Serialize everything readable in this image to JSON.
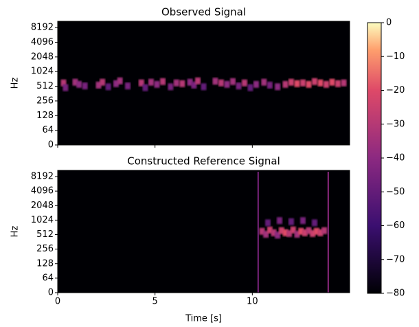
{
  "chart_data": [
    {
      "type": "spectrogram",
      "title": "Observed Signal",
      "ylabel": "Hz",
      "xlim": [
        0,
        15
      ],
      "xticks": [
        0,
        5,
        10
      ],
      "ylim": [
        0,
        11025
      ],
      "yticks": [
        0,
        64,
        128,
        256,
        512,
        1024,
        2048,
        4096,
        8192
      ],
      "cells": {
        "x": [
          0.3,
          0.4,
          0.9,
          1.1,
          1.4,
          2.1,
          2.3,
          2.6,
          3.0,
          3.2,
          3.6,
          4.3,
          4.5,
          4.8,
          5.1,
          5.4,
          5.8,
          6.1,
          6.4,
          6.8,
          7.0,
          7.2,
          7.5,
          8.1,
          8.4,
          8.7,
          9.0,
          9.3,
          9.6,
          9.9,
          10.2,
          10.6,
          10.9,
          11.3,
          11.7,
          12.0,
          12.3,
          12.6,
          12.9,
          13.2,
          13.5,
          13.8,
          14.1,
          14.4,
          14.7
        ],
        "y": [
          600,
          480,
          620,
          560,
          520,
          540,
          620,
          500,
          580,
          660,
          520,
          600,
          480,
          620,
          560,
          640,
          500,
          600,
          580,
          620,
          540,
          660,
          500,
          650,
          600,
          560,
          640,
          520,
          600,
          480,
          560,
          620,
          540,
          500,
          560,
          620,
          580,
          600,
          560,
          640,
          600,
          560,
          620,
          580,
          600
        ],
        "values": [
          -30,
          -45,
          -35,
          -40,
          -45,
          -35,
          -30,
          -50,
          -40,
          -35,
          -45,
          -30,
          -50,
          -35,
          -40,
          -30,
          -45,
          -35,
          -30,
          -40,
          -45,
          -30,
          -50,
          -35,
          -30,
          -40,
          -35,
          -45,
          -30,
          -50,
          -40,
          -35,
          -45,
          -40,
          -30,
          -25,
          -20,
          -25,
          -20,
          -25,
          -20,
          -25,
          -20,
          -25,
          -30
        ]
      }
    },
    {
      "type": "spectrogram",
      "title": "Constructed Reference Signal",
      "ylabel": "Hz",
      "xlabel": "Time [s]",
      "xlim": [
        0,
        15
      ],
      "xticks": [
        0,
        5,
        10
      ],
      "ylim": [
        0,
        11025
      ],
      "yticks": [
        0,
        64,
        128,
        256,
        512,
        1024,
        2048,
        4096,
        8192
      ],
      "cells": {
        "x": [
          10.5,
          10.7,
          10.9,
          11.1,
          11.3,
          11.5,
          11.7,
          11.9,
          12.1,
          12.3,
          12.5,
          12.7,
          12.9,
          13.1,
          13.3,
          13.5,
          13.7,
          10.8,
          11.4,
          12.0,
          12.6,
          13.2
        ],
        "y": [
          600,
          520,
          640,
          560,
          500,
          620,
          560,
          540,
          640,
          520,
          600,
          560,
          620,
          540,
          600,
          560,
          620,
          900,
          1000,
          950,
          1000,
          900
        ],
        "values": [
          -30,
          -35,
          -25,
          -30,
          -40,
          -25,
          -20,
          -30,
          -25,
          -35,
          -20,
          -25,
          -30,
          -25,
          -20,
          -25,
          -30,
          -50,
          -45,
          -50,
          -45,
          -50
        ]
      },
      "clicks": {
        "x": [
          10.3,
          13.9
        ],
        "values": [
          -45,
          -40
        ]
      }
    }
  ],
  "colorbar": {
    "lim": [
      -80,
      0
    ],
    "ticks": [
      0,
      {
        "value": -10,
        "label": "−10"
      },
      {
        "value": -20,
        "label": "−20"
      },
      {
        "value": -30,
        "label": "−30"
      },
      {
        "value": -40,
        "label": "−40"
      },
      {
        "value": -50,
        "label": "−50"
      },
      {
        "value": -60,
        "label": "−60"
      },
      {
        "value": -70,
        "label": "−70"
      },
      {
        "value": -80,
        "label": "−80"
      }
    ]
  }
}
